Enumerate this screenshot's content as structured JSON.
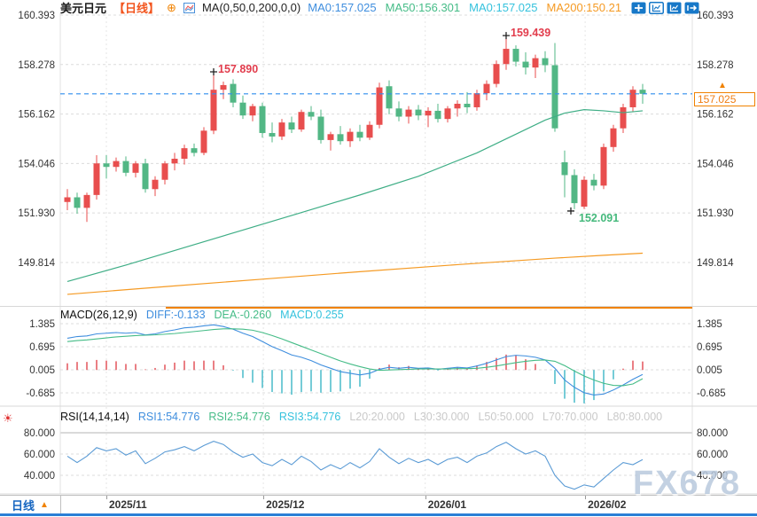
{
  "header": {
    "symbol": "美元日元",
    "period": "【日线】",
    "ma_formula": "MA(0,50,0,200,0,0)",
    "ma_values": [
      {
        "label": "MA0:157.025",
        "color": "#3f8ede"
      },
      {
        "label": "MA50:156.301",
        "color": "#45bc87"
      },
      {
        "label": "MA0:157.025",
        "color": "#35c2dd"
      },
      {
        "label": "MA200:150.21",
        "color": "#f59a23"
      }
    ]
  },
  "toolbar": {
    "icons": [
      "pan-icon",
      "chart-style-outline-icon",
      "chart-style-filled-icon",
      "exit-icon"
    ],
    "accent": "#1778c8"
  },
  "macd_header": {
    "formula": "MACD(26,12,9)",
    "values": [
      {
        "label": "DIFF:-0.133",
        "color": "#3f8ede"
      },
      {
        "label": "DEA:-0.260",
        "color": "#45bc87"
      },
      {
        "label": "MACD:0.255",
        "color": "#35c2dd"
      }
    ]
  },
  "rsi_header": {
    "formula": "RSI(14,14,14)",
    "values": [
      {
        "label": "RSI1:54.776",
        "color": "#3f8ede"
      },
      {
        "label": "RSI2:54.776",
        "color": "#45bc87"
      },
      {
        "label": "RSI3:54.776",
        "color": "#35c2dd"
      },
      {
        "label": "L20:20.000",
        "color": "#c9c9c9"
      },
      {
        "label": "L30:30.000",
        "color": "#c9c9c9"
      },
      {
        "label": "L50:50.000",
        "color": "#c9c9c9"
      },
      {
        "label": "L70:70.000",
        "color": "#c9c9c9"
      },
      {
        "label": "L80:80.000",
        "color": "#c9c9c9"
      }
    ]
  },
  "bottom_bar": {
    "tab_label": "日线",
    "tab_arrow": "▲"
  },
  "watermark": "FX678",
  "price_marker": {
    "label": "157.025"
  },
  "chart_data": {
    "type": "candlestick",
    "title": "美元日元 日线 (USD/JPY Daily)",
    "colors": {
      "up": "#e84e4e",
      "down": "#52b785",
      "grid": "#dcdcdc",
      "diff": "#3f8ede",
      "dea": "#45bc87",
      "hist_pos": "#e0484f",
      "hist_neg": "#3bb6c6",
      "rsi": "#5b9bd5",
      "ma50": "#3fae86",
      "ma200": "#f59a23",
      "price_line": "#2f8ded",
      "annotation_high": "#e23d4d",
      "annotation_low": "#45b97c",
      "range_indicator": "#f08200"
    },
    "price_panel": {
      "ylim": [
        147.95,
        160.5
      ],
      "ytick_labels": [
        "160.393",
        "158.278",
        "156.162",
        "154.046",
        "151.930",
        "149.814"
      ]
    },
    "macd_panel": {
      "ylim": [
        -1.03,
        1.52
      ],
      "ytick_labels": [
        "1.385",
        "0.695",
        "0.005",
        "-0.685"
      ]
    },
    "rsi_panel": {
      "ylim": [
        24,
        88
      ],
      "ytick_labels": [
        "80.000",
        "60.000",
        "40.000"
      ]
    },
    "month_ticks": [
      {
        "pos": 4.0,
        "label": "2025/11"
      },
      {
        "pos": 20.1,
        "label": "2025/12"
      },
      {
        "pos": 36.7,
        "label": "2026/01"
      },
      {
        "pos": 53.1,
        "label": "2026/02"
      }
    ],
    "current_price": 157.025,
    "candles_ohlc": [
      [
        152.4,
        152.95,
        152.05,
        152.6
      ],
      [
        152.6,
        152.8,
        151.9,
        152.15
      ],
      [
        152.15,
        152.8,
        151.55,
        152.7
      ],
      [
        152.7,
        154.4,
        152.5,
        154.05
      ],
      [
        154.05,
        154.4,
        153.4,
        153.9
      ],
      [
        153.9,
        154.3,
        153.7,
        154.15
      ],
      [
        154.15,
        154.35,
        153.5,
        153.65
      ],
      [
        153.65,
        154.15,
        153.45,
        154.05
      ],
      [
        154.05,
        154.25,
        152.8,
        152.95
      ],
      [
        152.95,
        153.5,
        152.65,
        153.35
      ],
      [
        153.35,
        154.15,
        153.15,
        154.05
      ],
      [
        154.05,
        154.5,
        153.75,
        154.25
      ],
      [
        154.25,
        154.85,
        154.0,
        154.7
      ],
      [
        154.7,
        154.9,
        154.35,
        154.5
      ],
      [
        154.5,
        155.6,
        154.4,
        155.45
      ],
      [
        155.45,
        157.89,
        155.3,
        157.2
      ],
      [
        157.2,
        157.55,
        156.8,
        157.4
      ],
      [
        157.45,
        157.65,
        156.45,
        156.65
      ],
      [
        156.65,
        156.95,
        155.95,
        156.1
      ],
      [
        156.1,
        156.6,
        155.85,
        156.5
      ],
      [
        156.5,
        156.65,
        155.15,
        155.35
      ],
      [
        155.35,
        155.8,
        154.95,
        155.2
      ],
      [
        155.2,
        155.95,
        155.05,
        155.8
      ],
      [
        155.8,
        156.05,
        155.35,
        155.5
      ],
      [
        155.5,
        156.35,
        155.4,
        156.25
      ],
      [
        156.25,
        156.5,
        155.9,
        156.05
      ],
      [
        156.05,
        156.35,
        154.9,
        155.05
      ],
      [
        155.05,
        155.4,
        154.6,
        155.3
      ],
      [
        155.3,
        155.65,
        154.85,
        155.0
      ],
      [
        155.0,
        155.55,
        154.75,
        155.4
      ],
      [
        155.4,
        155.7,
        155.0,
        155.15
      ],
      [
        155.15,
        155.85,
        155.05,
        155.7
      ],
      [
        155.7,
        157.5,
        155.55,
        157.3
      ],
      [
        157.35,
        157.6,
        156.15,
        156.4
      ],
      [
        156.4,
        156.7,
        155.85,
        156.05
      ],
      [
        156.05,
        156.5,
        155.75,
        156.35
      ],
      [
        156.35,
        156.55,
        155.9,
        156.1
      ],
      [
        156.1,
        156.45,
        155.6,
        156.3
      ],
      [
        156.3,
        156.6,
        155.8,
        155.95
      ],
      [
        155.95,
        156.5,
        155.8,
        156.4
      ],
      [
        156.4,
        156.75,
        156.05,
        156.6
      ],
      [
        156.6,
        157.1,
        156.2,
        156.45
      ],
      [
        156.45,
        157.2,
        156.3,
        157.05
      ],
      [
        157.05,
        157.6,
        156.75,
        157.45
      ],
      [
        157.45,
        158.45,
        157.3,
        158.3
      ],
      [
        158.3,
        159.439,
        158.05,
        158.95
      ],
      [
        158.95,
        159.1,
        158.2,
        158.4
      ],
      [
        158.4,
        158.8,
        157.85,
        158.15
      ],
      [
        158.15,
        158.7,
        157.7,
        158.55
      ],
      [
        158.55,
        158.85,
        157.95,
        158.25
      ],
      [
        158.25,
        159.2,
        155.4,
        155.55
      ],
      [
        154.1,
        154.6,
        152.6,
        153.55
      ],
      [
        153.55,
        153.8,
        152.091,
        152.35
      ],
      [
        152.2,
        153.5,
        152.1,
        153.35
      ],
      [
        153.35,
        153.6,
        152.9,
        153.1
      ],
      [
        153.1,
        154.9,
        152.95,
        154.75
      ],
      [
        154.75,
        155.7,
        154.55,
        155.55
      ],
      [
        155.55,
        156.6,
        155.35,
        156.45
      ],
      [
        156.45,
        157.35,
        156.25,
        157.2
      ],
      [
        157.2,
        157.45,
        156.6,
        157.025
      ]
    ],
    "ma_lines": [
      {
        "name": "MA50",
        "color": "#3fae86",
        "points": [
          [
            0,
            149.0
          ],
          [
            6,
            149.7
          ],
          [
            12,
            150.45
          ],
          [
            18,
            151.2
          ],
          [
            24,
            151.95
          ],
          [
            30,
            152.7
          ],
          [
            36,
            153.5
          ],
          [
            42,
            154.5
          ],
          [
            46,
            155.3
          ],
          [
            49,
            155.9
          ],
          [
            51,
            156.2
          ],
          [
            53,
            156.35
          ],
          [
            55,
            156.3
          ],
          [
            57,
            156.22
          ],
          [
            59,
            156.3
          ]
        ]
      },
      {
        "name": "MA200",
        "color": "#f59a23",
        "points": [
          [
            0,
            148.45
          ],
          [
            10,
            148.78
          ],
          [
            20,
            149.1
          ],
          [
            30,
            149.42
          ],
          [
            40,
            149.72
          ],
          [
            50,
            150.0
          ],
          [
            55,
            150.12
          ],
          [
            59,
            150.21
          ]
        ]
      }
    ],
    "macd": {
      "diff": [
        0.95,
        1.0,
        1.02,
        1.08,
        1.1,
        1.12,
        1.1,
        1.12,
        1.05,
        1.08,
        1.15,
        1.2,
        1.26,
        1.28,
        1.32,
        1.35,
        1.3,
        1.22,
        1.1,
        1.0,
        0.85,
        0.7,
        0.58,
        0.45,
        0.38,
        0.28,
        0.15,
        0.05,
        -0.05,
        -0.1,
        -0.15,
        -0.1,
        0.02,
        0.08,
        0.05,
        0.08,
        0.05,
        0.06,
        0.02,
        0.05,
        0.08,
        0.06,
        0.12,
        0.2,
        0.3,
        0.4,
        0.44,
        0.42,
        0.38,
        0.3,
        0.05,
        -0.3,
        -0.52,
        -0.68,
        -0.75,
        -0.72,
        -0.6,
        -0.45,
        -0.28,
        -0.133
      ],
      "dea": [
        0.85,
        0.88,
        0.9,
        0.93,
        0.96,
        0.99,
        1.01,
        1.03,
        1.04,
        1.05,
        1.07,
        1.09,
        1.12,
        1.15,
        1.18,
        1.21,
        1.23,
        1.23,
        1.22,
        1.19,
        1.12,
        1.03,
        0.93,
        0.82,
        0.71,
        0.6,
        0.49,
        0.38,
        0.27,
        0.18,
        0.1,
        0.03,
        -0.01,
        0.0,
        0.01,
        0.02,
        0.03,
        0.03,
        0.03,
        0.03,
        0.04,
        0.04,
        0.05,
        0.08,
        0.12,
        0.17,
        0.22,
        0.26,
        0.29,
        0.3,
        0.26,
        0.13,
        -0.03,
        -0.18,
        -0.3,
        -0.4,
        -0.46,
        -0.47,
        -0.42,
        -0.26
      ]
    },
    "rsi": [
      58,
      52,
      58,
      66,
      63,
      65,
      59,
      63,
      51,
      56,
      62,
      64,
      67,
      63,
      68,
      72,
      69,
      62,
      57,
      60,
      52,
      49,
      55,
      50,
      58,
      53,
      45,
      50,
      46,
      52,
      47,
      53,
      65,
      57,
      51,
      56,
      52,
      55,
      50,
      55,
      57,
      52,
      58,
      61,
      67,
      71,
      65,
      60,
      63,
      58,
      40,
      30,
      27,
      31,
      29,
      37,
      45,
      52,
      50,
      54.776
    ],
    "annotations": [
      {
        "kind": "high",
        "index": 15,
        "price": 157.89,
        "label": "157.890"
      },
      {
        "kind": "high",
        "index": 45,
        "price": 159.439,
        "label": "159.439"
      },
      {
        "kind": "low",
        "index": 52,
        "price": 152.091,
        "label": "152.091"
      }
    ]
  }
}
